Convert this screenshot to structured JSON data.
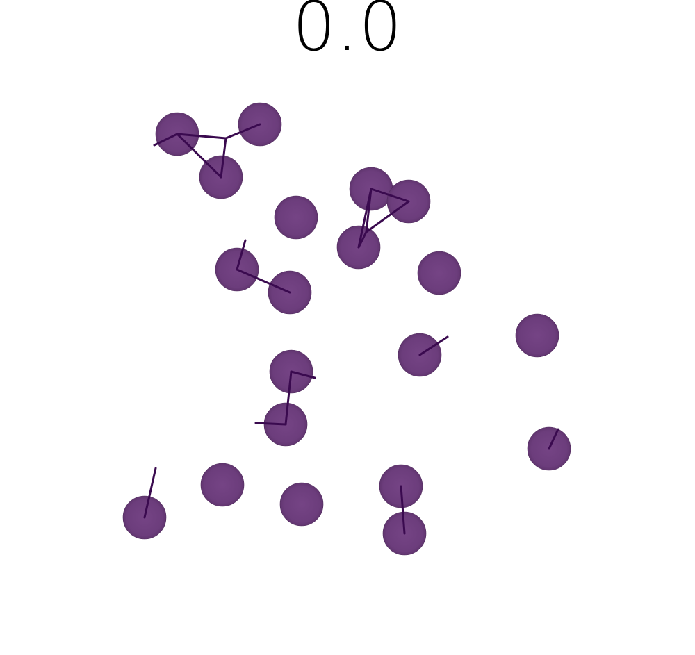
{
  "frame_label": "0.0",
  "colors": {
    "particle_fill": "#6e3f7f",
    "particle_edge": "#4f2a5c",
    "bond_line": "#3a0a4f",
    "background": "#ffffff"
  },
  "scene": {
    "particle_count": 21,
    "particle_shape": "shaded sphere",
    "bond_shape": "line segment"
  }
}
